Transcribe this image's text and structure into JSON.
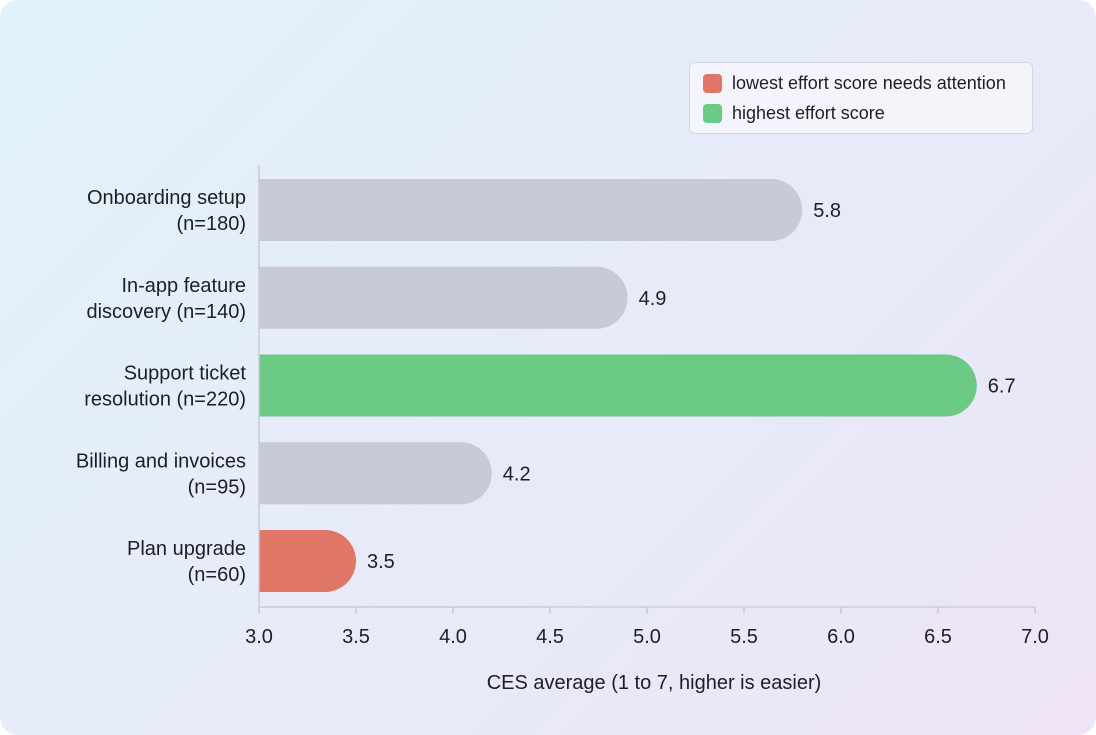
{
  "chart_data": {
    "type": "bar",
    "orientation": "horizontal",
    "categories": [
      [
        "Onboarding setup",
        "(n=180)"
      ],
      [
        "In-app feature",
        "discovery (n=140)"
      ],
      [
        "Support ticket",
        "resolution (n=220)"
      ],
      [
        "Billing and invoices",
        "(n=95)"
      ],
      [
        "Plan upgrade",
        "(n=60)"
      ]
    ],
    "values": [
      5.8,
      4.9,
      6.7,
      4.2,
      3.5
    ],
    "value_labels": [
      "5.8",
      "4.9",
      "6.7",
      "4.2",
      "3.5"
    ],
    "bar_colors": [
      "#c8cad6",
      "#c8cad6",
      "#6bcb85",
      "#c8cad6",
      "#e07666"
    ],
    "xlabel": "CES average (1 to 7, higher is easier)",
    "xlim": [
      3.0,
      7.0
    ],
    "xticks": [
      "3.0",
      "3.5",
      "4.0",
      "4.5",
      "5.0",
      "5.5",
      "6.0",
      "6.5",
      "7.0"
    ],
    "grid": false,
    "legend": {
      "placement": "top-right",
      "items": [
        {
          "label": "lowest effort score needs attention",
          "color": "#e07666"
        },
        {
          "label": "highest effort score",
          "color": "#6bcb85"
        }
      ]
    }
  }
}
